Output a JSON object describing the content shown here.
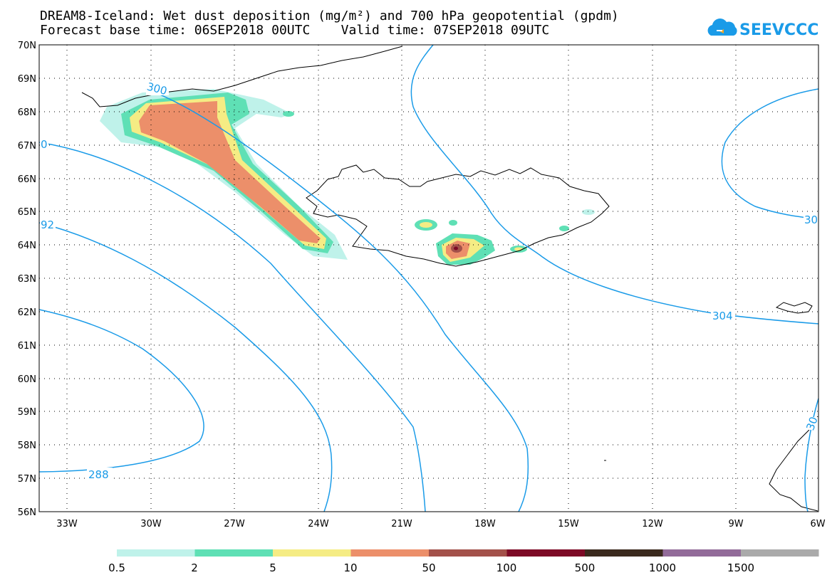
{
  "header": {
    "title_line1": "DREAM8-Iceland: Wet dust deposition (mg/m²) and 700 hPa geopotential (gpdm)",
    "title_line2": "Forecast base time: 06SEP2018 00UTC    Valid time: 07SEP2018 09UTC"
  },
  "logo": {
    "text": "SEEVCCC",
    "color": "#1a9be8",
    "icon": "cloud-icon"
  },
  "map": {
    "lat_labels": [
      "70N",
      "69N",
      "68N",
      "67N",
      "66N",
      "65N",
      "64N",
      "63N",
      "62N",
      "61N",
      "60N",
      "59N",
      "58N",
      "57N",
      "56N"
    ],
    "lon_labels": [
      "33W",
      "30W",
      "27W",
      "24W",
      "21W",
      "18W",
      "15W",
      "12W",
      "9W",
      "6W"
    ],
    "contour_labels": [
      "300",
      "304",
      "288",
      "92",
      "30",
      "30",
      "0"
    ],
    "contour_color": "#1a9be8"
  },
  "colorbar": {
    "labels": [
      "0.5",
      "2",
      "5",
      "10",
      "50",
      "100",
      "500",
      "1000",
      "1500"
    ],
    "colors": [
      "#bff2ea",
      "#5fe0b5",
      "#f5ec84",
      "#ec8f6a",
      "#a3514a",
      "#7d0a26",
      "#3b2a1e",
      "#926b99",
      "#aaaaaa"
    ]
  }
}
